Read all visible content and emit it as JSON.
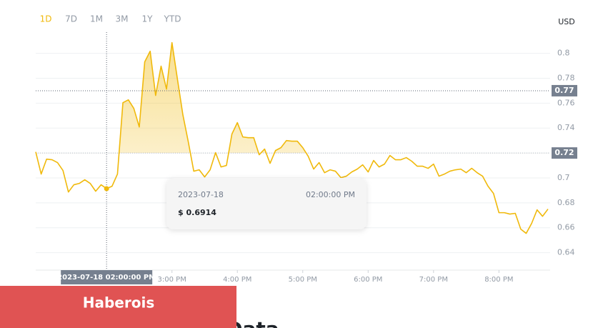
{
  "ranges": [
    "1D",
    "7D",
    "1M",
    "3M",
    "1Y",
    "YTD"
  ],
  "currency": "USD",
  "banner": "Haberois",
  "heading": "ARKM Price Live Data",
  "chart_data": {
    "type": "line",
    "color": "#f0b90b",
    "x": [
      775,
      780,
      785,
      790,
      795,
      800,
      805,
      810,
      815,
      820,
      825,
      830,
      835,
      840,
      845,
      850,
      855,
      860,
      865,
      870,
      875,
      880,
      885,
      890,
      895,
      900,
      905,
      910,
      915,
      920,
      925,
      930,
      935,
      940,
      945,
      950,
      955,
      960,
      965,
      970,
      975,
      980,
      985,
      990,
      995,
      1000,
      1005,
      1010,
      1015,
      1020,
      1025,
      1030,
      1035,
      1040,
      1045,
      1050,
      1055,
      1060,
      1065,
      1070,
      1075,
      1080,
      1085,
      1090,
      1095,
      1100,
      1105,
      1110,
      1115,
      1120,
      1125,
      1130,
      1135,
      1140,
      1145,
      1150,
      1155,
      1160,
      1165,
      1170,
      1175,
      1180,
      1185,
      1190,
      1195,
      1200,
      1205,
      1210,
      1215,
      1220,
      1225,
      1230,
      1235,
      1240,
      1245
    ],
    "values": [
      0.7209,
      0.7031,
      0.7151,
      0.7146,
      0.7123,
      0.706,
      0.6887,
      0.6945,
      0.6956,
      0.6985,
      0.6956,
      0.6893,
      0.6945,
      0.6914,
      0.6933,
      0.7031,
      0.7604,
      0.7627,
      0.7558,
      0.7409,
      0.7931,
      0.8017,
      0.7662,
      0.7897,
      0.7713,
      0.8086,
      0.7794,
      0.7507,
      0.7289,
      0.7054,
      0.7065,
      0.7008,
      0.7065,
      0.7203,
      0.7088,
      0.71,
      0.7352,
      0.7444,
      0.7329,
      0.7323,
      0.7323,
      0.7186,
      0.7232,
      0.7117,
      0.722,
      0.7243,
      0.73,
      0.7295,
      0.7295,
      0.7243,
      0.7174,
      0.7071,
      0.7123,
      0.7042,
      0.7065,
      0.7054,
      0.7002,
      0.7014,
      0.7048,
      0.7071,
      0.7105,
      0.7048,
      0.714,
      0.7088,
      0.7111,
      0.718,
      0.7146,
      0.7146,
      0.7163,
      0.7134,
      0.7094,
      0.7094,
      0.7077,
      0.7111,
      0.7014,
      0.7031,
      0.7054,
      0.7065,
      0.7071,
      0.7042,
      0.7077,
      0.7042,
      0.7014,
      0.6933,
      0.6876,
      0.6721,
      0.6721,
      0.671,
      0.6716,
      0.6589,
      0.6555,
      0.6635,
      0.6744,
      0.6692,
      0.675
    ],
    "xlim": [
      775,
      1245
    ],
    "xticks": [
      {
        "value": 900,
        "label": "3:00 PM"
      },
      {
        "value": 960,
        "label": "4:00 PM"
      },
      {
        "value": 1020,
        "label": "5:00 PM"
      },
      {
        "value": 1080,
        "label": "6:00 PM"
      },
      {
        "value": 1140,
        "label": "7:00 PM"
      },
      {
        "value": 1200,
        "label": "8:00 PM"
      }
    ],
    "ylim": [
      0.626,
      0.817
    ],
    "yticks": [
      0.64,
      0.66,
      0.68,
      0.7,
      0.72,
      0.74,
      0.76,
      0.78,
      0.8
    ],
    "grid": true,
    "open_price": 0.72,
    "hover_price": 0.77,
    "tooltip": {
      "index": 13,
      "date": "2023-07-18",
      "time": "02:00:00 PM",
      "price_label": "$ 0.6914",
      "axis_label": "2023-07-18 02:00:00 PM"
    }
  }
}
